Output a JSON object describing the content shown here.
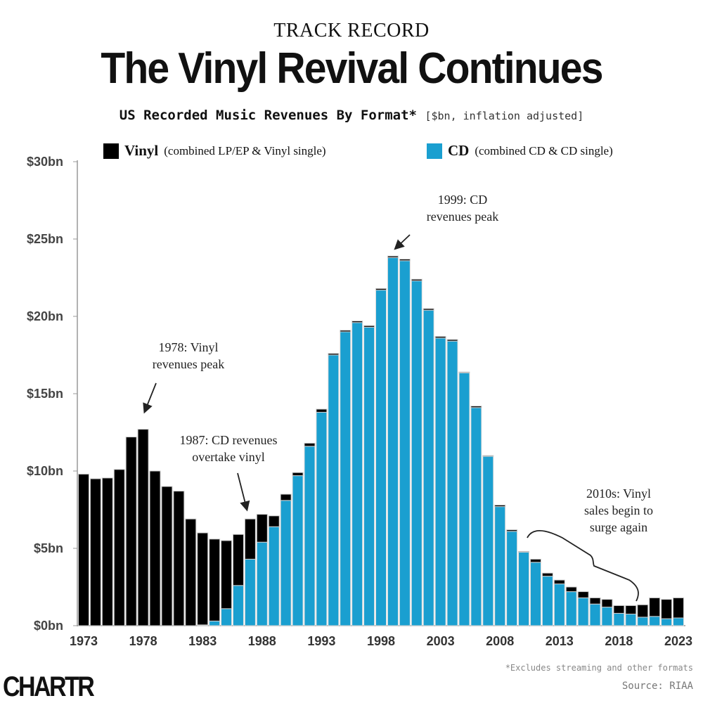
{
  "header": {
    "kicker": "TRACK RECORD",
    "title": "The Vinyl Revival Continues",
    "subtitle": "US Recorded Music Revenues By Format*",
    "unit_note": "[$bn, inflation adjusted]"
  },
  "legend": {
    "vinyl_label": "Vinyl",
    "vinyl_desc": "(combined LP/EP & Vinyl single)",
    "cd_label": "CD",
    "cd_desc": "(combined CD & CD single)"
  },
  "footer": {
    "footnote": "*Excludes streaming and other formats",
    "source": "Source: RIAA",
    "logo": "CHARTR"
  },
  "chart_data": {
    "type": "bar",
    "stacked": true,
    "title": "The Vinyl Revival Continues",
    "xlabel": "",
    "ylabel": "",
    "ylim": [
      0,
      30
    ],
    "grid": false,
    "legend_position": "top",
    "y_ticks": [
      0,
      5,
      10,
      15,
      20,
      25,
      30
    ],
    "y_tick_labels": [
      "$0bn",
      "$5bn",
      "$10bn",
      "$15bn",
      "$20bn",
      "$25bn",
      "$30bn"
    ],
    "x_tick_labels": [
      "1973",
      "1978",
      "1983",
      "1988",
      "1993",
      "1998",
      "2003",
      "2008",
      "2013",
      "2018",
      "2023"
    ],
    "categories": [
      1973,
      1974,
      1975,
      1976,
      1977,
      1978,
      1979,
      1980,
      1981,
      1982,
      1983,
      1984,
      1985,
      1986,
      1987,
      1988,
      1989,
      1990,
      1991,
      1992,
      1993,
      1994,
      1995,
      1996,
      1997,
      1998,
      1999,
      2000,
      2001,
      2002,
      2003,
      2004,
      2005,
      2006,
      2007,
      2008,
      2009,
      2010,
      2011,
      2012,
      2013,
      2014,
      2015,
      2016,
      2017,
      2018,
      2019,
      2020,
      2021,
      2022,
      2023
    ],
    "series": [
      {
        "name": "CD",
        "color": "#1a9fd0",
        "values": [
          0,
          0,
          0,
          0,
          0,
          0,
          0,
          0,
          0,
          0,
          0.05,
          0.3,
          1.1,
          2.6,
          4.3,
          5.4,
          6.4,
          8.1,
          9.7,
          11.6,
          13.8,
          17.5,
          19.0,
          19.6,
          19.3,
          21.7,
          23.8,
          23.6,
          22.3,
          20.4,
          18.6,
          18.4,
          16.35,
          14.1,
          10.95,
          7.7,
          6.1,
          4.75,
          4.1,
          3.2,
          2.7,
          2.2,
          1.8,
          1.4,
          1.2,
          0.8,
          0.75,
          0.55,
          0.6,
          0.45,
          0.5
        ]
      },
      {
        "name": "Vinyl",
        "color": "#000000",
        "values": [
          9.8,
          9.5,
          9.55,
          10.1,
          12.2,
          12.7,
          10.0,
          9.0,
          8.7,
          6.9,
          5.95,
          5.3,
          4.4,
          3.3,
          2.6,
          1.8,
          0.7,
          0.4,
          0.2,
          0.2,
          0.2,
          0.1,
          0.1,
          0.1,
          0.1,
          0.1,
          0.1,
          0.1,
          0.1,
          0.1,
          0.1,
          0.1,
          0.05,
          0.1,
          0.05,
          0.1,
          0.1,
          0.05,
          0.2,
          0.2,
          0.25,
          0.3,
          0.4,
          0.4,
          0.5,
          0.5,
          0.55,
          0.8,
          1.2,
          1.25,
          1.3
        ]
      }
    ],
    "annotations": [
      {
        "year": 1978,
        "lines": [
          "1978: Vinyl",
          "revenues peak"
        ]
      },
      {
        "year": 1987,
        "lines": [
          "1987: CD revenues",
          "overtake vinyl"
        ]
      },
      {
        "year": 1999,
        "lines": [
          "1999: CD",
          "revenues peak"
        ]
      },
      {
        "year": 2010,
        "lines": [
          "2010s: Vinyl",
          "sales begin to",
          "surge again"
        ]
      }
    ]
  }
}
